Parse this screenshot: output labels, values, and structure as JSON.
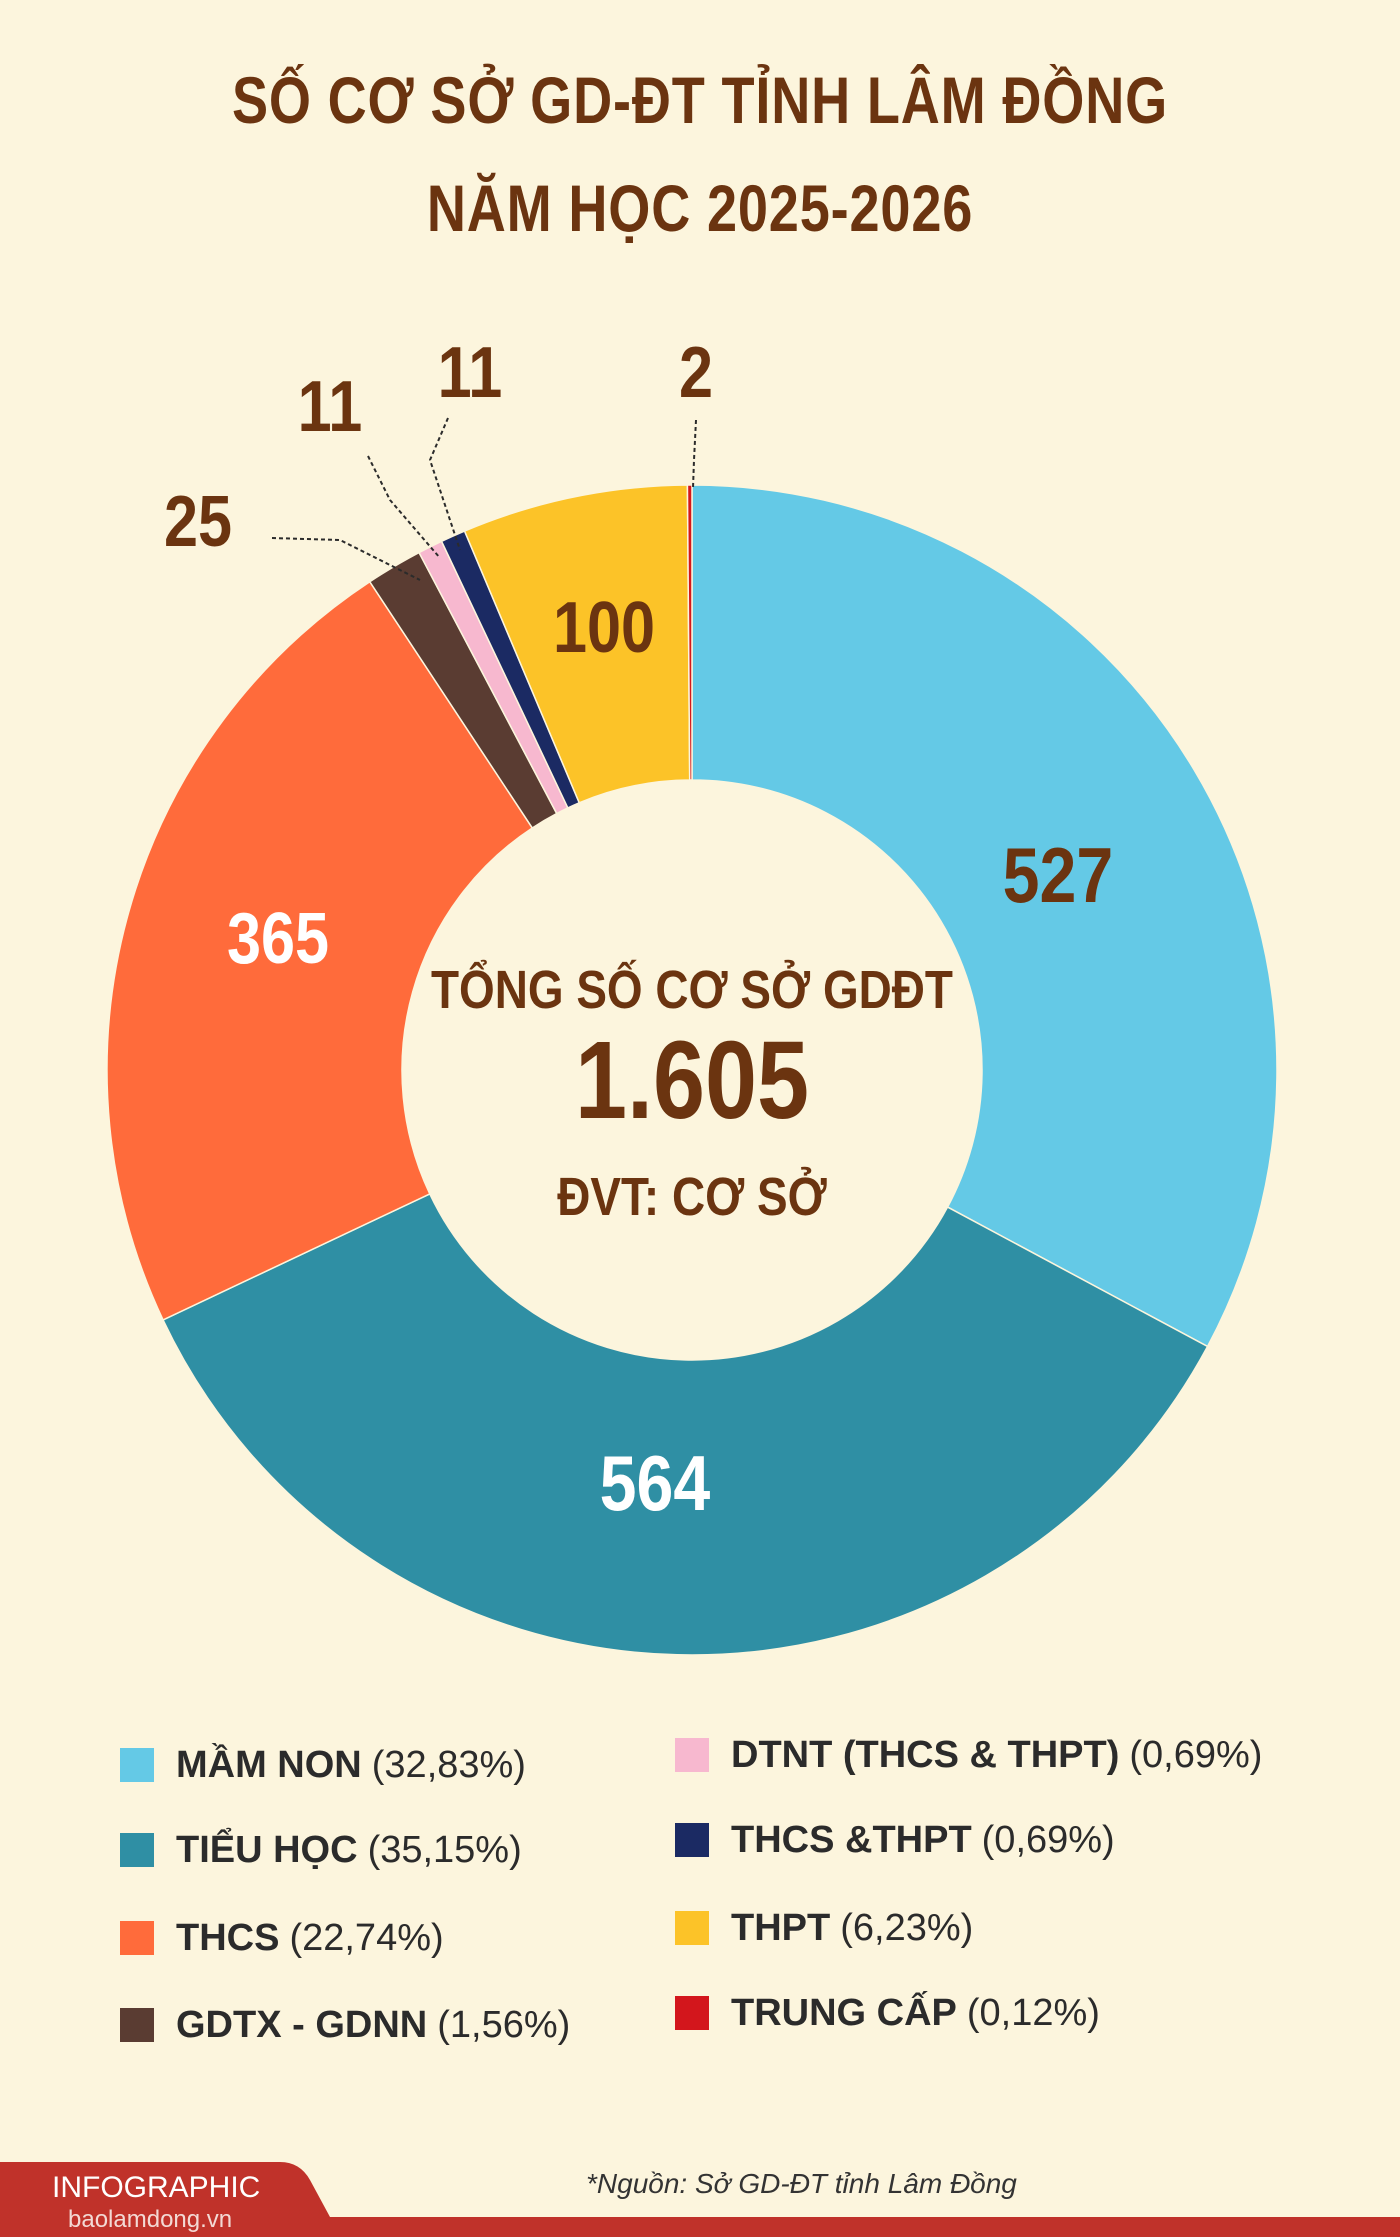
{
  "title_line1": "SỐ CƠ SỞ GD-ĐT TỈNH LÂM ĐỒNG",
  "title_line2": "NĂM HỌC 2025-2026",
  "chart_data": {
    "type": "pie",
    "variant": "donut",
    "title": "SỐ CƠ SỞ GD-ĐT TỈNH LÂM ĐỒNG NĂM HỌC 2025-2026",
    "center": {
      "line1": "TỔNG SỐ CƠ SỞ GDĐT",
      "line2": "1.605",
      "line3": "ĐVT: CƠ SỞ"
    },
    "slices": [
      {
        "name": "MẦM NON",
        "value": 527,
        "percent": "(32,83%)",
        "color": "#64c9e6",
        "label_color": "#6b3410"
      },
      {
        "name": "TIỂU HỌC",
        "value": 564,
        "percent": "(35,15%)",
        "color": "#2f8fa4",
        "label_color": "#ffffff"
      },
      {
        "name": "THCS",
        "value": 365,
        "percent": "(22,74%)",
        "color": "#ff6b3b",
        "label_color": "#ffffff"
      },
      {
        "name": "GDTX - GDNN",
        "value": 25,
        "percent": "(1,56%)",
        "color": "#5a3c32",
        "label_color": "#6b3410"
      },
      {
        "name": "DTNT (THCS & THPT)",
        "value": 11,
        "percent": "(0,69%)",
        "color": "#f7b8cf",
        "label_color": "#6b3410"
      },
      {
        "name": "THCS &THPT",
        "value": 11,
        "percent": "(0,69%)",
        "color": "#1b2a63",
        "label_color": "#6b3410"
      },
      {
        "name": "THPT",
        "value": 100,
        "percent": "(6,23%)",
        "color": "#fcc328",
        "label_color": "#6b3410"
      },
      {
        "name": "TRUNG CẤP",
        "value": 2,
        "percent": "(0,12%)",
        "color": "#d3161c",
        "label_color": "#6b3410"
      }
    ],
    "legend_position": "bottom"
  },
  "footer": {
    "label": "INFOGRAPHIC",
    "site": "baolamdong.vn",
    "color": "#c0322a"
  },
  "source": "*Nguồn: Sở GD-ĐT tỉnh Lâm Đồng"
}
